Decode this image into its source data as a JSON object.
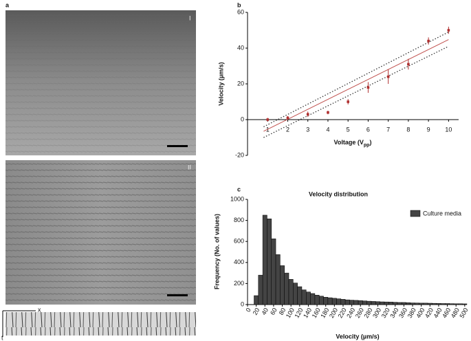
{
  "panel_labels": [
    "a",
    "b",
    "c"
  ],
  "image_labels": [
    "I",
    "II"
  ],
  "kymograph_axes": [
    "x",
    "t"
  ],
  "chart_data": [
    {
      "type": "scatter",
      "xlabel": "Voltage (V",
      "xlabel_sub": "pp",
      "xlabel_end": ")",
      "ylabel": "Velocity (µm/s)",
      "x": [
        1,
        2,
        3,
        4,
        5,
        6,
        7,
        8,
        9,
        10
      ],
      "values": [
        0,
        1,
        3,
        4,
        10,
        18,
        24,
        31,
        44,
        50
      ],
      "errors": [
        1,
        1,
        1.5,
        1,
        1.5,
        3,
        4,
        3,
        2,
        2
      ],
      "color": "#b03030",
      "lines": [
        {
          "x": [
            0.8,
            10
          ],
          "values": [
            -6.5,
            44.8
          ],
          "color": "#c0504d",
          "dash": false
        },
        {
          "x": [
            0.8,
            10
          ],
          "values": [
            -4,
            49
          ],
          "color": "#333333",
          "dash": true
        },
        {
          "x": [
            0.8,
            10
          ],
          "values": [
            -10,
            41
          ],
          "color": "#333333",
          "dash": true
        }
      ],
      "xlim": [
        0,
        10.5
      ],
      "xticks": [
        1,
        2,
        3,
        4,
        5,
        6,
        7,
        8,
        9,
        10
      ],
      "ylim": [
        -20,
        60
      ],
      "yticks": [
        -20,
        0,
        20,
        40,
        60
      ]
    },
    {
      "type": "histogram",
      "title": "Velocity distribution",
      "xlabel": "Velocity (µm/s)",
      "ylabel": "Frequency (No. of values)",
      "legend": "Culture media",
      "legend_position": "upper right",
      "color": "#444444",
      "bins": [
        15,
        25,
        35,
        45,
        55,
        65,
        75,
        85,
        95,
        105,
        115,
        125,
        135,
        145,
        155,
        165,
        175,
        185,
        195,
        205,
        215,
        225,
        235,
        245,
        255,
        265,
        275,
        285,
        295,
        305,
        315,
        325,
        335,
        345,
        355,
        365,
        375,
        385,
        395,
        405,
        415,
        425,
        435,
        445,
        455,
        465,
        475,
        485,
        495,
        505
      ],
      "values": [
        85,
        280,
        850,
        815,
        625,
        475,
        370,
        300,
        240,
        205,
        170,
        140,
        120,
        105,
        90,
        80,
        70,
        65,
        60,
        55,
        50,
        45,
        42,
        40,
        38,
        35,
        32,
        30,
        28,
        26,
        25,
        24,
        22,
        20,
        20,
        18,
        16,
        15,
        14,
        14,
        13,
        12,
        11,
        10,
        10,
        9,
        8,
        8,
        7
      ],
      "xlim": [
        0,
        505
      ],
      "xticks": [
        0,
        20,
        40,
        60,
        80,
        100,
        120,
        140,
        160,
        180,
        200,
        220,
        240,
        260,
        280,
        300,
        320,
        340,
        360,
        380,
        400,
        420,
        440,
        460,
        480,
        500
      ],
      "ylim": [
        0,
        1000
      ],
      "yticks": [
        0,
        200,
        400,
        600,
        800,
        1000
      ]
    }
  ]
}
